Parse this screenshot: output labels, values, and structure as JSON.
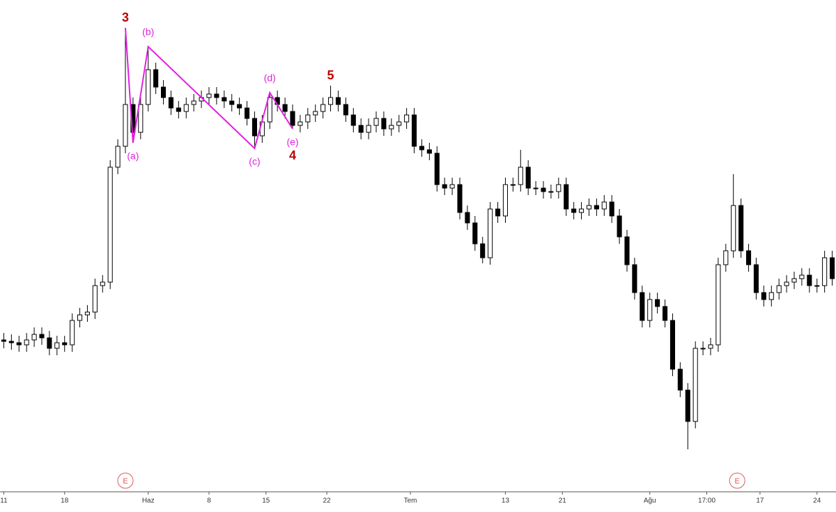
{
  "chart_data": {
    "type": "candlestick",
    "open": [
      212,
      210,
      208,
      205,
      212,
      220,
      215,
      200,
      208,
      205,
      240,
      248,
      252,
      290,
      295,
      460,
      490,
      550,
      510,
      550,
      600,
      575,
      560,
      545,
      540,
      550,
      555,
      560,
      565,
      560,
      555,
      550,
      545,
      530,
      505,
      525,
      560,
      550,
      540,
      520,
      525,
      535,
      540,
      550,
      560,
      550,
      535,
      520,
      510,
      520,
      530,
      515,
      520,
      525,
      535,
      490,
      485,
      480,
      435,
      430,
      435,
      395,
      380,
      350,
      330,
      400,
      390,
      435,
      435,
      460,
      430,
      430,
      425,
      425,
      435,
      400,
      395,
      400,
      405,
      400,
      410,
      390,
      360,
      320,
      280,
      240,
      270,
      260,
      240,
      170,
      140,
      95,
      200,
      200,
      205,
      320,
      340,
      405,
      340,
      320,
      280,
      270,
      280,
      290,
      295,
      300,
      305,
      290,
      290,
      330
    ],
    "high": [
      222,
      220,
      218,
      222,
      230,
      230,
      225,
      218,
      218,
      250,
      258,
      262,
      300,
      305,
      470,
      500,
      660,
      560,
      560,
      633,
      610,
      585,
      570,
      555,
      560,
      565,
      570,
      575,
      575,
      570,
      565,
      560,
      555,
      540,
      535,
      567,
      570,
      560,
      550,
      535,
      545,
      550,
      560,
      577,
      570,
      560,
      545,
      530,
      530,
      540,
      540,
      530,
      535,
      545,
      545,
      500,
      495,
      490,
      445,
      445,
      445,
      405,
      390,
      360,
      410,
      410,
      445,
      445,
      485,
      470,
      440,
      440,
      435,
      445,
      445,
      410,
      410,
      415,
      415,
      420,
      420,
      400,
      370,
      330,
      290,
      280,
      280,
      270,
      250,
      180,
      150,
      210,
      210,
      215,
      330,
      350,
      450,
      415,
      350,
      330,
      290,
      290,
      300,
      305,
      310,
      315,
      315,
      300,
      340,
      340
    ],
    "low": [
      200,
      198,
      195,
      195,
      202,
      205,
      190,
      190,
      195,
      195,
      230,
      238,
      242,
      280,
      285,
      450,
      480,
      495,
      500,
      540,
      565,
      550,
      535,
      530,
      530,
      540,
      545,
      550,
      550,
      545,
      540,
      535,
      520,
      487,
      495,
      515,
      540,
      530,
      515,
      510,
      515,
      525,
      530,
      540,
      540,
      525,
      510,
      500,
      500,
      510,
      505,
      505,
      510,
      515,
      480,
      475,
      470,
      425,
      420,
      420,
      385,
      370,
      340,
      322,
      320,
      380,
      380,
      425,
      425,
      420,
      420,
      415,
      415,
      415,
      390,
      385,
      385,
      390,
      390,
      390,
      380,
      350,
      310,
      270,
      230,
      230,
      250,
      230,
      160,
      130,
      55,
      85,
      190,
      190,
      195,
      310,
      330,
      330,
      310,
      270,
      260,
      260,
      270,
      280,
      285,
      290,
      280,
      280,
      280,
      290
    ],
    "close": [
      210,
      208,
      205,
      212,
      220,
      215,
      200,
      208,
      205,
      240,
      248,
      252,
      290,
      295,
      460,
      490,
      550,
      510,
      550,
      600,
      575,
      560,
      545,
      540,
      550,
      555,
      560,
      565,
      560,
      555,
      550,
      545,
      530,
      505,
      525,
      560,
      550,
      540,
      520,
      525,
      535,
      540,
      550,
      560,
      550,
      535,
      520,
      510,
      520,
      530,
      515,
      520,
      525,
      535,
      490,
      485,
      480,
      435,
      430,
      435,
      395,
      380,
      350,
      330,
      400,
      390,
      435,
      435,
      460,
      430,
      430,
      425,
      425,
      435,
      400,
      395,
      400,
      405,
      400,
      410,
      390,
      360,
      320,
      280,
      240,
      270,
      260,
      240,
      170,
      140,
      95,
      200,
      200,
      205,
      320,
      340,
      405,
      340,
      320,
      280,
      270,
      280,
      290,
      295,
      300,
      305,
      290,
      290,
      330,
      300
    ],
    "up_color": "#ffffff",
    "down_color": "#000000",
    "wick_color": "#000000",
    "xlim": [
      -0.5,
      109.5
    ],
    "ylim": [
      0,
      700
    ],
    "xticks": [
      {
        "value": 0,
        "label": "11"
      },
      {
        "value": 8,
        "label": "18"
      },
      {
        "value": 19,
        "label": "Haz"
      },
      {
        "value": 27,
        "label": "8"
      },
      {
        "value": 34.5,
        "label": "15"
      },
      {
        "value": 42.5,
        "label": "22"
      },
      {
        "value": 53.5,
        "label": "Tem"
      },
      {
        "value": 66,
        "label": "13"
      },
      {
        "value": 73.5,
        "label": "21"
      },
      {
        "value": 85,
        "label": "Ağu"
      },
      {
        "value": 92.5,
        "label": "17:00"
      },
      {
        "value": 99.5,
        "label": "17"
      },
      {
        "value": 107,
        "label": "24"
      }
    ],
    "wave": {
      "color": "#e020e0",
      "x": [
        16,
        17,
        19,
        33,
        35,
        38
      ],
      "y": [
        660,
        495,
        633,
        487,
        567,
        515
      ]
    },
    "annotations": [
      {
        "label": "3",
        "x": 16,
        "y": 660,
        "position": "above",
        "color": "#c00000"
      },
      {
        "label": "(a)",
        "x": 17,
        "y": 495,
        "position": "below",
        "color": "#e020e0"
      },
      {
        "label": "(b)",
        "x": 19,
        "y": 633,
        "position": "above",
        "color": "#e020e0"
      },
      {
        "label": "(c)",
        "x": 33,
        "y": 487,
        "position": "below",
        "color": "#e020e0"
      },
      {
        "label": "(d)",
        "x": 35,
        "y": 567,
        "position": "above",
        "color": "#e020e0"
      },
      {
        "label": "(e)",
        "x": 38,
        "y": 515,
        "position": "below",
        "color": "#e020e0"
      },
      {
        "label": "4",
        "x": 38,
        "y": 490,
        "position": "below",
        "color": "#c00000"
      },
      {
        "label": "5",
        "x": 43,
        "y": 577,
        "position": "above",
        "color": "#c00000"
      }
    ],
    "events": [
      {
        "label": "E",
        "x": 16
      },
      {
        "label": "E",
        "x": 96.5
      }
    ],
    "event_color": "#e05a5a"
  }
}
